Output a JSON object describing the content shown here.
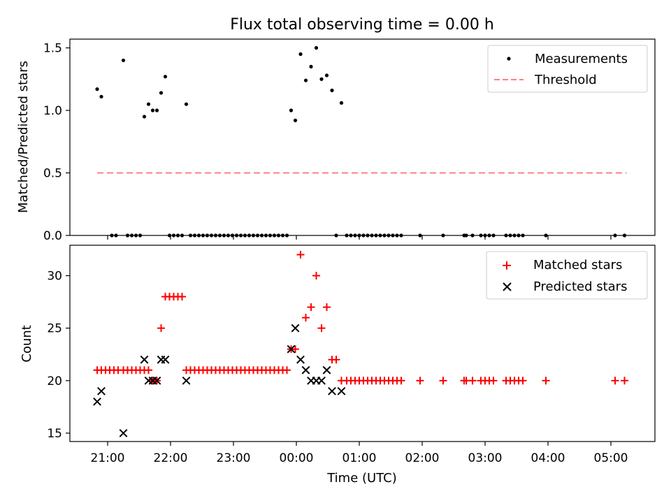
{
  "title": "Flux total observing time = 0.00 h",
  "top_panel": {
    "ylabel": "Matched/Predicted stars",
    "yticks": [
      "0.0",
      "0.5",
      "1.0",
      "1.5"
    ],
    "legend": {
      "measurements": "Measurements",
      "threshold": "Threshold"
    }
  },
  "bottom_panel": {
    "ylabel": "Count",
    "yticks": [
      "15",
      "20",
      "25",
      "30"
    ],
    "legend": {
      "matched": "Matched stars",
      "predicted": "Predicted stars"
    }
  },
  "xlabel": "Time (UTC)",
  "xticks": [
    "21:00",
    "22:00",
    "23:00",
    "00:00",
    "01:00",
    "02:00",
    "03:00",
    "04:00",
    "05:00"
  ],
  "colors": {
    "measurements": "#000000",
    "threshold": "#ff7f7f",
    "matched": "#ff0000",
    "predicted": "#000000"
  },
  "chart_data": [
    {
      "type": "scatter",
      "ylabel": "Matched/Predicted stars",
      "ylim": [
        0,
        1.57
      ],
      "threshold": 0.5,
      "threshold_range": [
        "20:50",
        "05:15"
      ],
      "series": [
        {
          "name": "Measurements",
          "points": [
            [
              "20:50",
              1.17
            ],
            [
              "20:54",
              1.11
            ],
            [
              "21:04",
              0.0
            ],
            [
              "21:08",
              0.0
            ],
            [
              "21:15",
              1.4
            ],
            [
              "21:19",
              0.0
            ],
            [
              "21:23",
              0.0
            ],
            [
              "21:27",
              0.0
            ],
            [
              "21:31",
              0.0
            ],
            [
              "21:35",
              0.95
            ],
            [
              "21:39",
              1.05
            ],
            [
              "21:43",
              1.0
            ],
            [
              "21:47",
              1.0
            ],
            [
              "21:51",
              1.14
            ],
            [
              "21:55",
              1.27
            ],
            [
              "21:59",
              0.0
            ],
            [
              "22:03",
              0.0
            ],
            [
              "22:07",
              0.0
            ],
            [
              "22:11",
              0.0
            ],
            [
              "22:15",
              1.05
            ],
            [
              "22:19",
              0.0
            ],
            [
              "22:23",
              0.0
            ],
            [
              "22:27",
              0.0
            ],
            [
              "22:31",
              0.0
            ],
            [
              "22:35",
              0.0
            ],
            [
              "22:39",
              0.0
            ],
            [
              "22:43",
              0.0
            ],
            [
              "22:47",
              0.0
            ],
            [
              "22:51",
              0.0
            ],
            [
              "22:55",
              0.0
            ],
            [
              "22:59",
              0.0
            ],
            [
              "23:03",
              0.0
            ],
            [
              "23:07",
              0.0
            ],
            [
              "23:11",
              0.0
            ],
            [
              "23:15",
              0.0
            ],
            [
              "23:19",
              0.0
            ],
            [
              "23:23",
              0.0
            ],
            [
              "23:27",
              0.0
            ],
            [
              "23:31",
              0.0
            ],
            [
              "23:35",
              0.0
            ],
            [
              "23:39",
              0.0
            ],
            [
              "23:43",
              0.0
            ],
            [
              "23:47",
              0.0
            ],
            [
              "23:51",
              0.0
            ],
            [
              "23:55",
              1.0
            ],
            [
              "23:59",
              0.92
            ],
            [
              "00:04",
              1.45
            ],
            [
              "00:09",
              1.24
            ],
            [
              "00:14",
              1.35
            ],
            [
              "00:19",
              1.5
            ],
            [
              "00:24",
              1.25
            ],
            [
              "00:29",
              1.28
            ],
            [
              "00:34",
              1.16
            ],
            [
              "00:38",
              0.0
            ],
            [
              "00:43",
              1.06
            ],
            [
              "00:48",
              0.0
            ],
            [
              "00:52",
              0.0
            ],
            [
              "00:56",
              0.0
            ],
            [
              "01:00",
              0.0
            ],
            [
              "01:04",
              0.0
            ],
            [
              "01:08",
              0.0
            ],
            [
              "01:12",
              0.0
            ],
            [
              "01:16",
              0.0
            ],
            [
              "01:20",
              0.0
            ],
            [
              "01:24",
              0.0
            ],
            [
              "01:28",
              0.0
            ],
            [
              "01:32",
              0.0
            ],
            [
              "01:36",
              0.0
            ],
            [
              "01:40",
              0.0
            ],
            [
              "01:58",
              0.0
            ],
            [
              "02:20",
              0.0
            ],
            [
              "02:40",
              0.0
            ],
            [
              "02:42",
              0.0
            ],
            [
              "02:48",
              0.0
            ],
            [
              "02:56",
              0.0
            ],
            [
              "03:00",
              0.0
            ],
            [
              "03:04",
              0.0
            ],
            [
              "03:08",
              0.0
            ],
            [
              "03:20",
              0.0
            ],
            [
              "03:24",
              0.0
            ],
            [
              "03:28",
              0.0
            ],
            [
              "03:32",
              0.0
            ],
            [
              "03:36",
              0.0
            ],
            [
              "03:58",
              0.0
            ],
            [
              "05:04",
              0.0
            ],
            [
              "05:13",
              0.0
            ]
          ]
        }
      ]
    },
    {
      "type": "scatter",
      "xlabel": "Time (UTC)",
      "ylabel": "Count",
      "ylim": [
        14.2,
        32.9
      ],
      "series": [
        {
          "name": "Matched stars",
          "points": [
            [
              "20:50",
              21
            ],
            [
              "20:54",
              21
            ],
            [
              "20:58",
              21
            ],
            [
              "21:02",
              21
            ],
            [
              "21:06",
              21
            ],
            [
              "21:10",
              21
            ],
            [
              "21:15",
              21
            ],
            [
              "21:19",
              21
            ],
            [
              "21:23",
              21
            ],
            [
              "21:27",
              21
            ],
            [
              "21:31",
              21
            ],
            [
              "21:35",
              21
            ],
            [
              "21:39",
              21
            ],
            [
              "21:43",
              20
            ],
            [
              "21:47",
              20
            ],
            [
              "21:51",
              25
            ],
            [
              "21:55",
              28
            ],
            [
              "21:59",
              28
            ],
            [
              "22:03",
              28
            ],
            [
              "22:07",
              28
            ],
            [
              "22:11",
              28
            ],
            [
              "22:15",
              21
            ],
            [
              "22:19",
              21
            ],
            [
              "22:23",
              21
            ],
            [
              "22:27",
              21
            ],
            [
              "22:31",
              21
            ],
            [
              "22:35",
              21
            ],
            [
              "22:39",
              21
            ],
            [
              "22:43",
              21
            ],
            [
              "22:47",
              21
            ],
            [
              "22:51",
              21
            ],
            [
              "22:55",
              21
            ],
            [
              "22:59",
              21
            ],
            [
              "23:03",
              21
            ],
            [
              "23:07",
              21
            ],
            [
              "23:11",
              21
            ],
            [
              "23:15",
              21
            ],
            [
              "23:19",
              21
            ],
            [
              "23:23",
              21
            ],
            [
              "23:27",
              21
            ],
            [
              "23:31",
              21
            ],
            [
              "23:35",
              21
            ],
            [
              "23:39",
              21
            ],
            [
              "23:43",
              21
            ],
            [
              "23:47",
              21
            ],
            [
              "23:51",
              21
            ],
            [
              "23:55",
              23
            ],
            [
              "23:59",
              23
            ],
            [
              "00:04",
              32
            ],
            [
              "00:09",
              26
            ],
            [
              "00:14",
              27
            ],
            [
              "00:19",
              30
            ],
            [
              "00:24",
              25
            ],
            [
              "00:29",
              27
            ],
            [
              "00:34",
              22
            ],
            [
              "00:38",
              22
            ],
            [
              "00:43",
              20
            ],
            [
              "00:48",
              20
            ],
            [
              "00:52",
              20
            ],
            [
              "00:56",
              20
            ],
            [
              "01:00",
              20
            ],
            [
              "01:04",
              20
            ],
            [
              "01:08",
              20
            ],
            [
              "01:12",
              20
            ],
            [
              "01:16",
              20
            ],
            [
              "01:20",
              20
            ],
            [
              "01:24",
              20
            ],
            [
              "01:28",
              20
            ],
            [
              "01:32",
              20
            ],
            [
              "01:36",
              20
            ],
            [
              "01:40",
              20
            ],
            [
              "01:58",
              20
            ],
            [
              "02:20",
              20
            ],
            [
              "02:40",
              20
            ],
            [
              "02:42",
              20
            ],
            [
              "02:48",
              20
            ],
            [
              "02:56",
              20
            ],
            [
              "03:00",
              20
            ],
            [
              "03:04",
              20
            ],
            [
              "03:08",
              20
            ],
            [
              "03:20",
              20
            ],
            [
              "03:24",
              20
            ],
            [
              "03:28",
              20
            ],
            [
              "03:32",
              20
            ],
            [
              "03:36",
              20
            ],
            [
              "03:58",
              20
            ],
            [
              "05:04",
              20
            ],
            [
              "05:13",
              20
            ]
          ]
        },
        {
          "name": "Predicted stars",
          "points": [
            [
              "20:50",
              18
            ],
            [
              "20:54",
              19
            ],
            [
              "21:15",
              15
            ],
            [
              "21:35",
              22
            ],
            [
              "21:39",
              20
            ],
            [
              "21:43",
              20
            ],
            [
              "21:47",
              20
            ],
            [
              "21:51",
              22
            ],
            [
              "21:55",
              22
            ],
            [
              "22:15",
              20
            ],
            [
              "23:55",
              23
            ],
            [
              "23:59",
              25
            ],
            [
              "00:04",
              22
            ],
            [
              "00:09",
              21
            ],
            [
              "00:14",
              20
            ],
            [
              "00:19",
              20
            ],
            [
              "00:24",
              20
            ],
            [
              "00:29",
              21
            ],
            [
              "00:34",
              19
            ],
            [
              "00:43",
              19
            ]
          ]
        }
      ]
    }
  ]
}
